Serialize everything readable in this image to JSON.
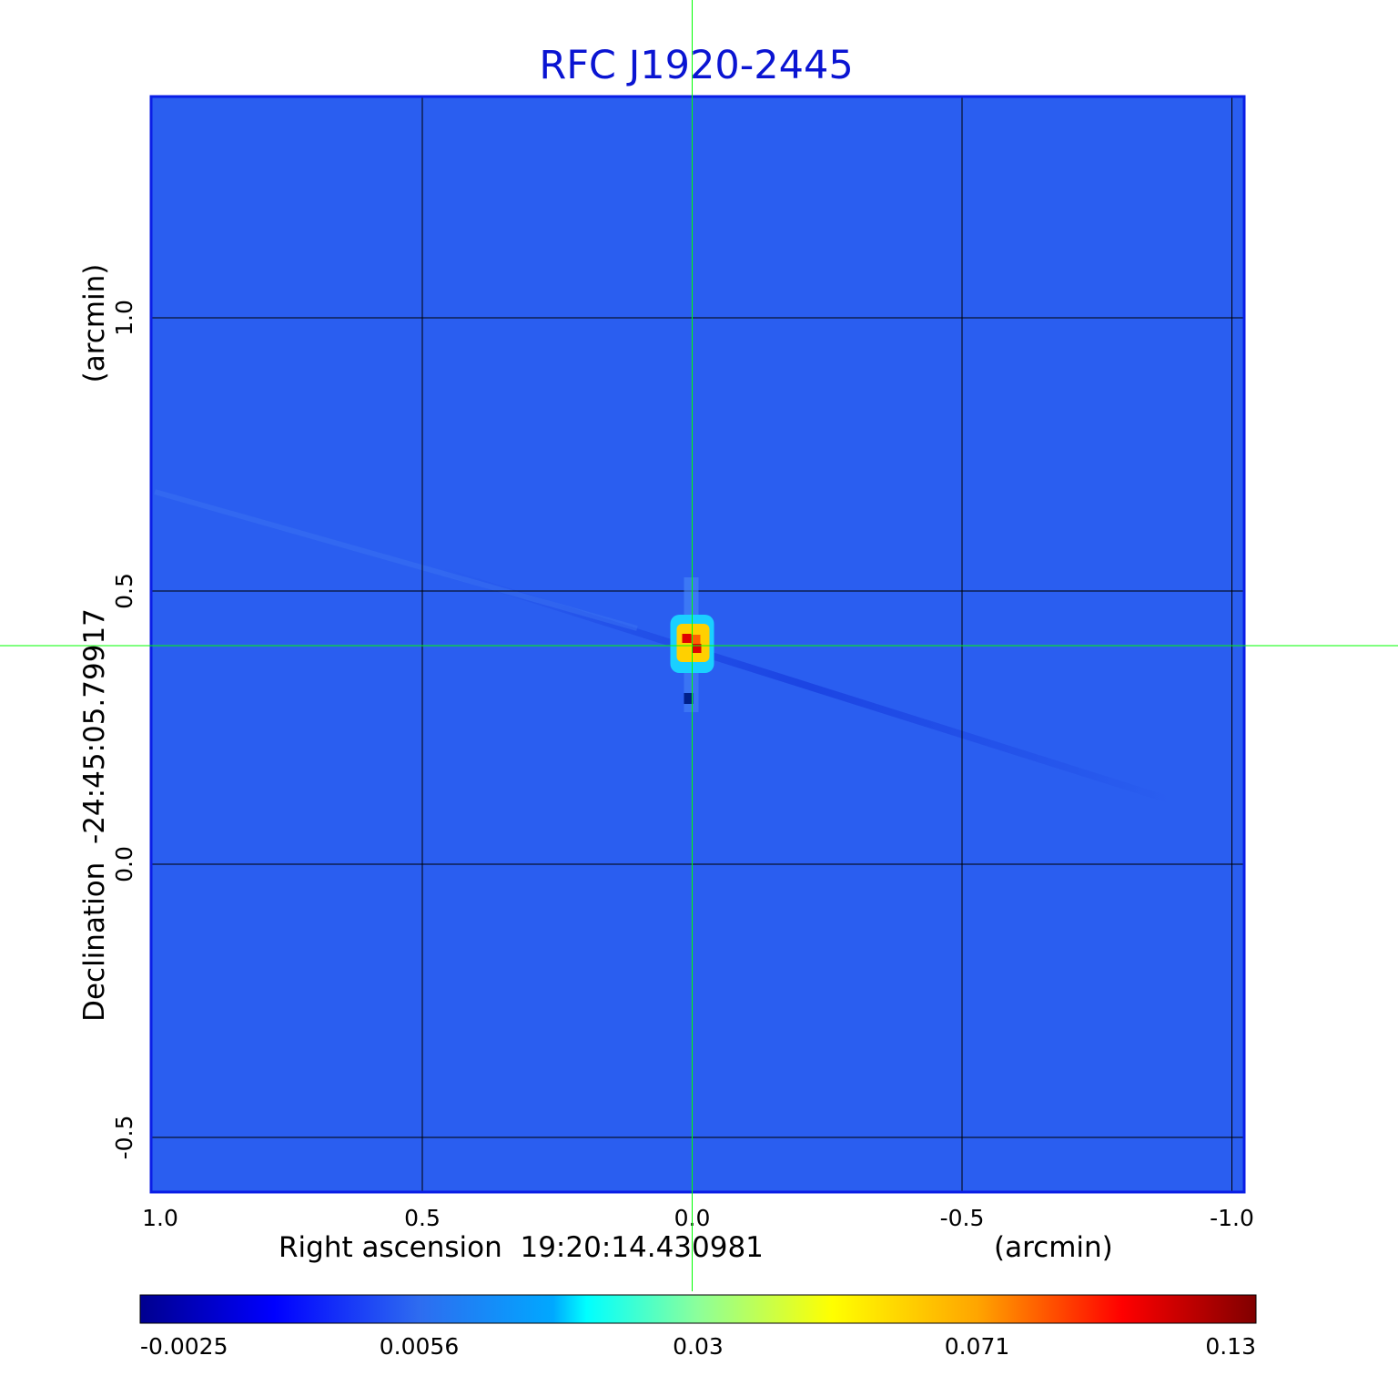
{
  "chart_data": {
    "type": "heatmap",
    "title": "RFC J1920-2445",
    "xlabel": "Right ascension  19:20:14.430981",
    "xunit": "(arcmin)",
    "ylabel": "Declination  -24:45:05.79917",
    "yunit": "(arcmin)",
    "xlim": [
      1.0,
      -1.0
    ],
    "ylim": [
      -0.6,
      1.4
    ],
    "x_ticks": [
      1.0,
      0.5,
      0.0,
      -0.5,
      -1.0
    ],
    "x_tick_labels": [
      "1.0",
      "0.5",
      "0.0",
      "-0.5",
      "-1.0"
    ],
    "y_ticks": [
      -0.5,
      0.0,
      0.5,
      1.0
    ],
    "y_tick_labels": [
      "-0.5",
      "0.0",
      "0.5",
      "1.0"
    ],
    "grid": true,
    "crosshair": {
      "x": 0.0,
      "y": 0.4
    },
    "source_peak": {
      "x": 0.0,
      "y": 0.4,
      "value": 0.13
    },
    "colorbar": {
      "colormap": "jet",
      "tick_values": [
        -0.0025,
        0.0056,
        0.03,
        0.071,
        0.13
      ],
      "tick_labels": [
        "-0.0025",
        "0.0056",
        "0.03",
        "0.071",
        "0.13"
      ]
    },
    "colors": {
      "title": "#0a14d2",
      "background": "#2a5ef0",
      "frame": "#0a1ee6",
      "grid": "#000000",
      "crosshair": "#00ff00"
    }
  }
}
